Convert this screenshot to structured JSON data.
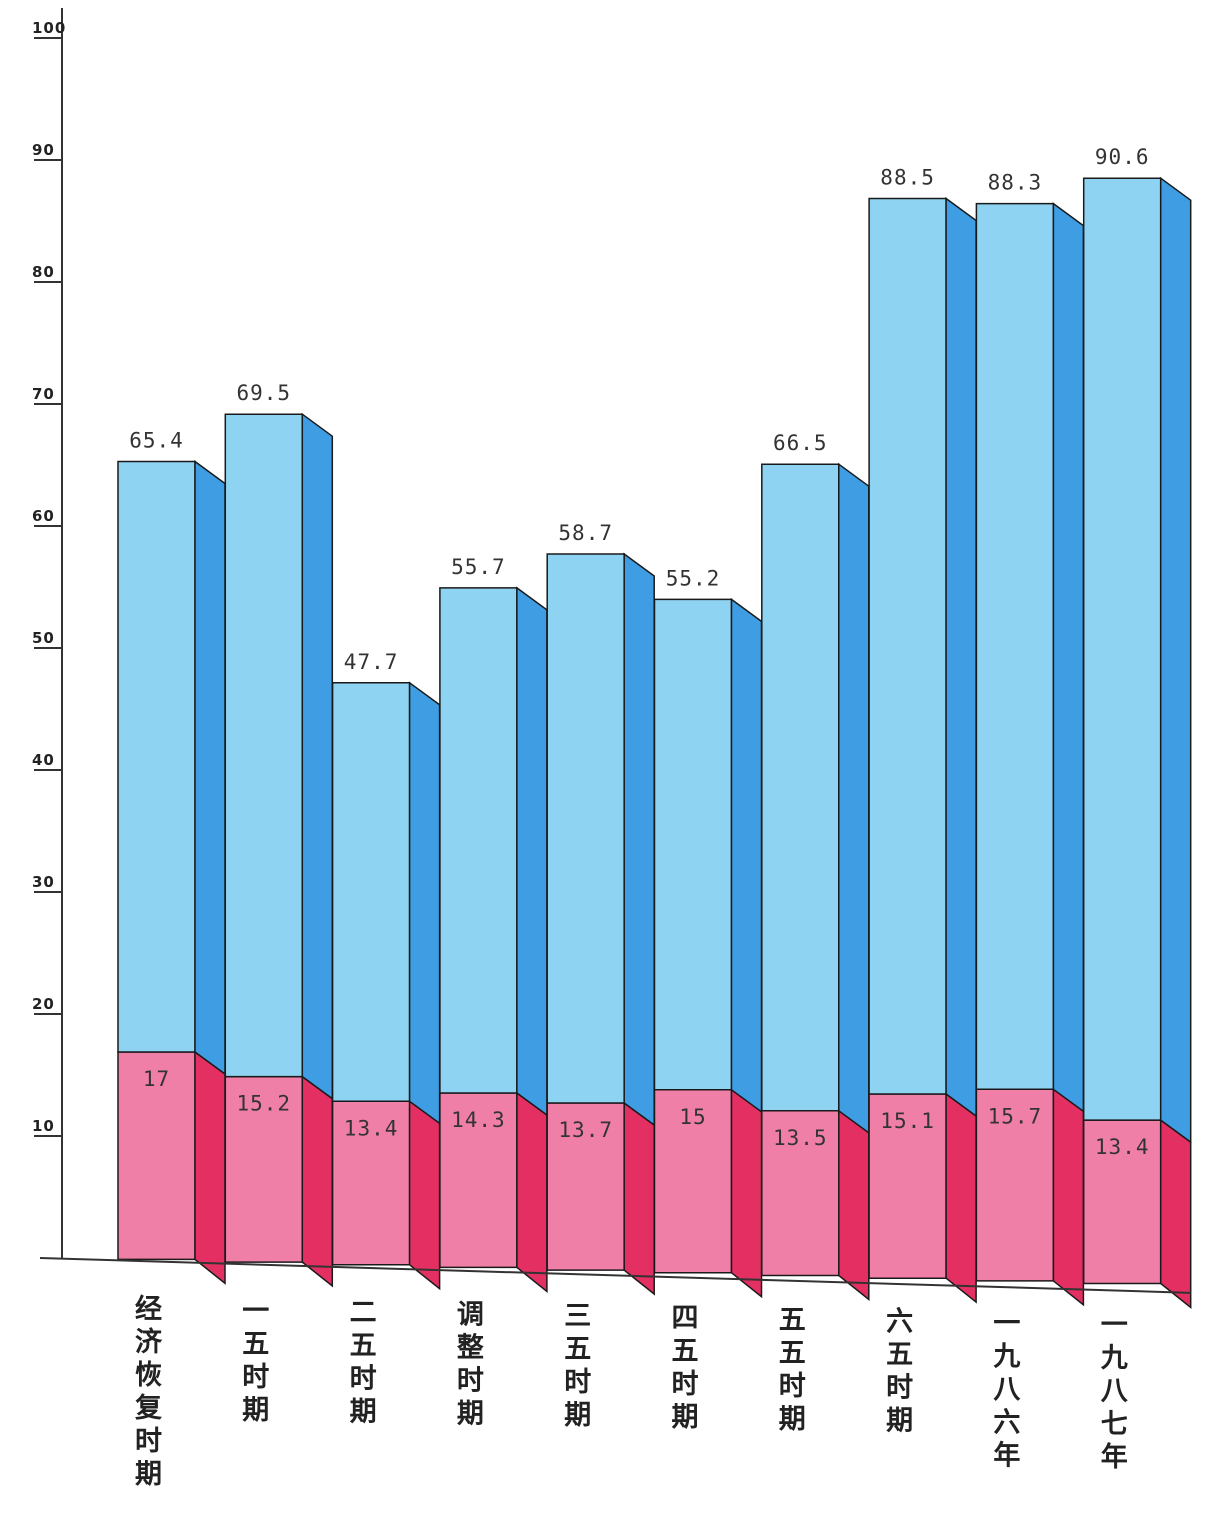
{
  "chart_data": {
    "type": "bar",
    "stacked": true,
    "three_d": true,
    "orientation": "vertical",
    "categories": [
      "经济恢复时期",
      "一五时期",
      "二五时期",
      "调整时期",
      "三五时期",
      "四五时期",
      "五五时期",
      "六五时期",
      "一九八六年",
      "一九八七年"
    ],
    "series": [
      {
        "values": [
          17,
          15.2,
          13.4,
          14.3,
          13.7,
          15,
          13.5,
          15.1,
          15.7,
          13.4
        ]
      }
    ],
    "total_labels": [
      65.4,
      69.5,
      47.7,
      55.7,
      58.7,
      55.2,
      66.5,
      88.5,
      88.3,
      90.6
    ],
    "totals": [
      65.4,
      69.5,
      47.7,
      55.7,
      58.7,
      55.2,
      66.5,
      88.5,
      88.3,
      90.6
    ],
    "segment_labels": [
      "17",
      "15.2",
      "13.4",
      "14.3",
      "13.7",
      "15",
      "13.5",
      "15.1",
      "15.7",
      "13.4"
    ],
    "yticks": [
      "100",
      "90",
      "80",
      "70",
      "60",
      "50",
      "40",
      "30",
      "20",
      "10"
    ],
    "ytick_values": [
      100,
      90,
      80,
      70,
      60,
      50,
      40,
      30,
      20,
      10
    ],
    "ylim": [
      0,
      100
    ],
    "grid": false,
    "legend": "none",
    "colors": {
      "lower_front": "#f07fa8",
      "lower_side": "#e42f62",
      "upper_front": "#8fd3f2",
      "upper_side": "#3f9ee3",
      "outline": "#1a1a1a"
    },
    "title": "",
    "xlabel": "",
    "ylabel": ""
  }
}
